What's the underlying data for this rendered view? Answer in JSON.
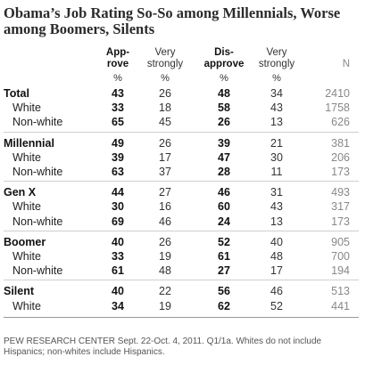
{
  "title": "Obama’s Job Rating So-So among Millennials, Worse among Boomers, Silents",
  "chart_data": {
    "type": "table",
    "headers": [
      {
        "key": "approve",
        "label": "Approve"
      },
      {
        "key": "approve_vs",
        "label": "Very strongly"
      },
      {
        "key": "disapprove",
        "label": "Disapprove"
      },
      {
        "key": "disapprove_vs",
        "label": "Very strongly"
      },
      {
        "key": "n",
        "label": "N"
      }
    ],
    "header_lines": {
      "approve": [
        "App-",
        "rove"
      ],
      "approve_vs": [
        "Very",
        "strongly"
      ],
      "disapprove": [
        "Dis-",
        "approve"
      ],
      "disapprove_vs": [
        "Very",
        "strongly"
      ],
      "n": "N"
    },
    "percent_sign": "%",
    "groups": [
      {
        "name": "Total",
        "values": [
          43,
          26,
          48,
          34,
          2410
        ],
        "rows": [
          {
            "name": "White",
            "values": [
              33,
              18,
              58,
              43,
              1758
            ]
          },
          {
            "name": "Non-white",
            "values": [
              65,
              45,
              26,
              13,
              626
            ]
          }
        ]
      },
      {
        "name": "Millennial",
        "values": [
          49,
          26,
          39,
          21,
          381
        ],
        "rows": [
          {
            "name": "White",
            "values": [
              39,
              17,
              47,
              30,
              206
            ]
          },
          {
            "name": "Non-white",
            "values": [
              63,
              37,
              28,
              11,
              173
            ]
          }
        ]
      },
      {
        "name": "Gen X",
        "values": [
          44,
          27,
          46,
          31,
          493
        ],
        "rows": [
          {
            "name": "White",
            "values": [
              30,
              16,
              60,
              43,
              317
            ]
          },
          {
            "name": "Non-white",
            "values": [
              69,
              46,
              24,
              13,
              173
            ]
          }
        ]
      },
      {
        "name": "Boomer",
        "values": [
          40,
          26,
          52,
          40,
          905
        ],
        "rows": [
          {
            "name": "White",
            "values": [
              33,
              19,
              61,
              48,
              700
            ]
          },
          {
            "name": "Non-white",
            "values": [
              61,
              48,
              27,
              17,
              194
            ]
          }
        ]
      },
      {
        "name": "Silent",
        "values": [
          40,
          22,
          56,
          46,
          513
        ],
        "rows": [
          {
            "name": "White",
            "values": [
              34,
              19,
              62,
              52,
              441
            ]
          }
        ]
      }
    ]
  },
  "footnote": "PEW RESEARCH CENTER Sept. 22-Oct. 4, 2011. Q1/1a. Whites do not include Hispanics; non-whites include Hispanics."
}
